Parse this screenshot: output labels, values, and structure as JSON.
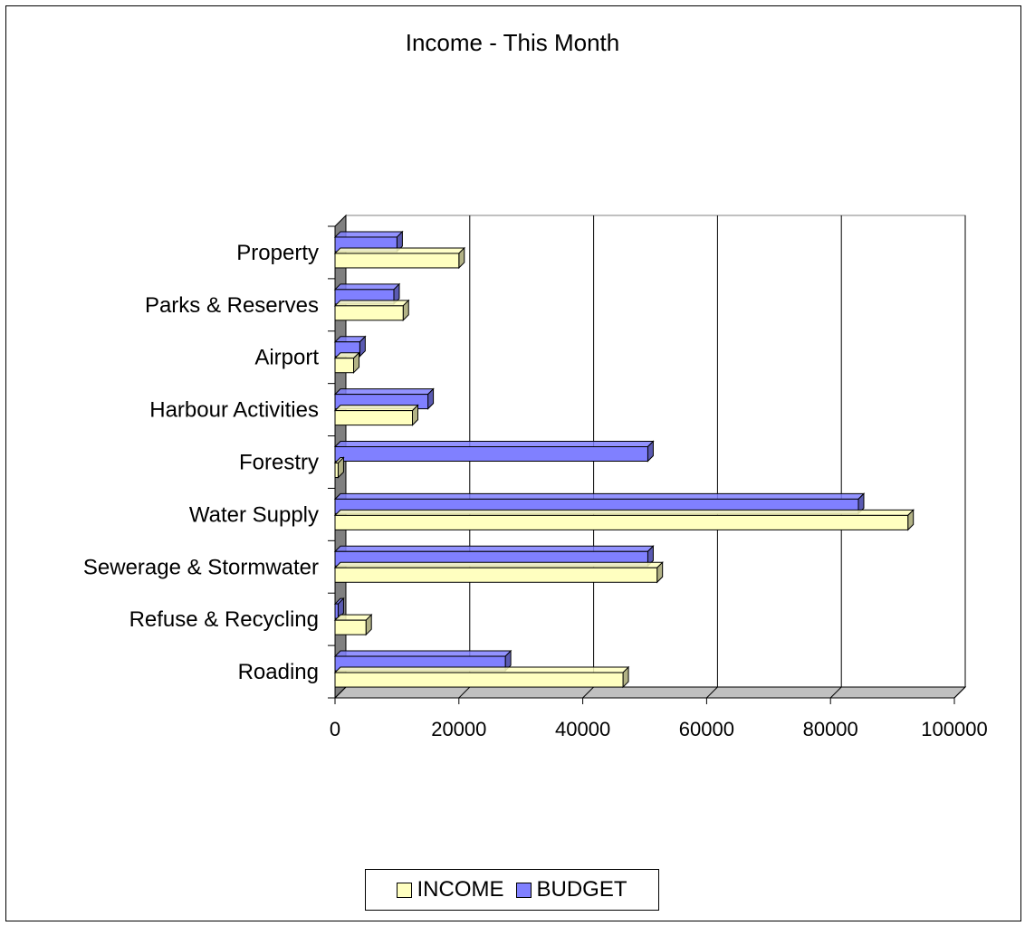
{
  "chart_data": {
    "type": "bar",
    "orientation": "horizontal",
    "title": "Income - This Month",
    "xlabel": "",
    "ylabel": "",
    "categories": [
      "Roading",
      "Refuse & Recycling",
      "Sewerage & Stormwater",
      "Water Supply",
      "Forestry",
      "Harbour Activities",
      "Airport",
      "Parks & Reserves",
      "Property"
    ],
    "series": [
      {
        "name": "INCOME",
        "color": "#ffffc0",
        "values": [
          46500,
          5000,
          52000,
          92500,
          500,
          12500,
          3000,
          11000,
          20000
        ]
      },
      {
        "name": "BUDGET",
        "color": "#8080ff",
        "values": [
          27500,
          500,
          50500,
          84500,
          50500,
          15000,
          4000,
          9500,
          10000
        ]
      }
    ],
    "xlim": [
      0,
      100000
    ],
    "xticks": [
      "0",
      "20000",
      "40000",
      "60000",
      "80000",
      "100000"
    ],
    "grid": true,
    "legend_position": "bottom"
  },
  "legend": {
    "income_label": "INCOME",
    "budget_label": "BUDGET"
  }
}
